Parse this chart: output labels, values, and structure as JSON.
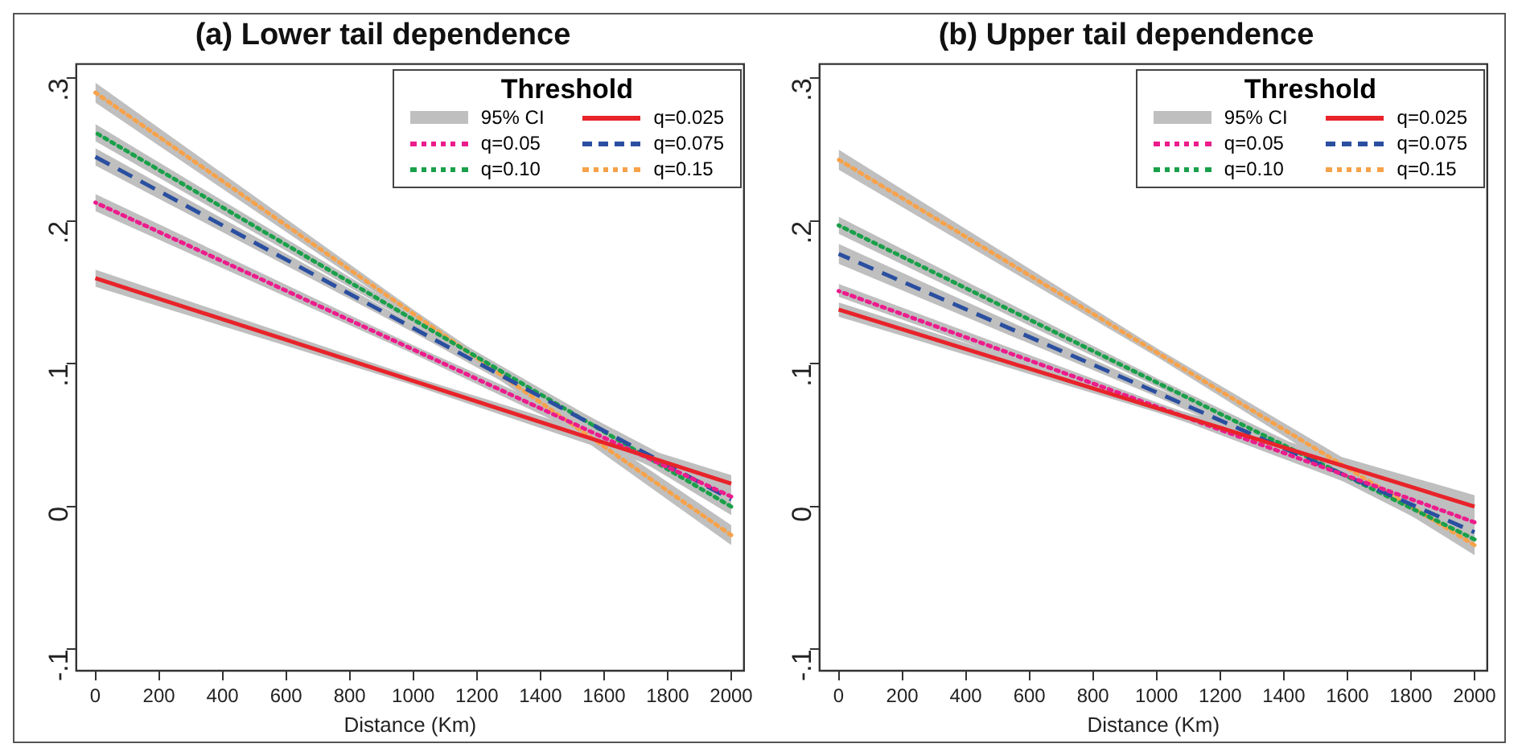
{
  "chart_data": [
    {
      "type": "line",
      "title": "(a) Lower tail dependence",
      "xlabel": "Distance (Km)",
      "legend": "top right",
      "legend_title": "Threshold",
      "marker": "none",
      "grid": false,
      "x": [
        0,
        1000,
        2000
      ],
      "xlim": [
        -60,
        2040
      ],
      "xticks": [
        0,
        200,
        400,
        600,
        800,
        1000,
        1200,
        1400,
        1600,
        1800,
        2000
      ],
      "ylim": [
        -0.115,
        0.31
      ],
      "yticks": [
        {
          "value": -0.1,
          "label": "-.1"
        },
        {
          "value": 0,
          "label": "0"
        },
        {
          "value": 0.1,
          "label": ".1"
        },
        {
          "value": 0.2,
          "label": ".2"
        },
        {
          "value": 0.3,
          "label": ".3"
        }
      ],
      "series": [
        {
          "name": "95% CI",
          "type": "area",
          "color": "#bfbfbf",
          "values": [
            null,
            null,
            null
          ]
        },
        {
          "name": "q=0.025",
          "color": "#e8232a",
          "line_style": "solid",
          "values": [
            0.16,
            0.088,
            0.016
          ],
          "lower": [
            0.154,
            0.085,
            0.01
          ],
          "upper": [
            0.166,
            0.091,
            0.022
          ]
        },
        {
          "name": "q=0.05",
          "color": "#ec1c8c",
          "line_style": "dotted",
          "values": [
            0.213,
            0.11,
            0.007
          ],
          "lower": [
            0.207,
            0.107,
            0.001
          ],
          "upper": [
            0.219,
            0.113,
            0.013
          ]
        },
        {
          "name": "q=0.075",
          "color": "#2a4fa0",
          "line_style": "dashed",
          "values": [
            0.245,
            0.125,
            0.005
          ],
          "lower": [
            0.239,
            0.122,
            -0.001
          ],
          "upper": [
            0.251,
            0.128,
            0.011
          ]
        },
        {
          "name": "q=0.10",
          "color": "#1aa04a",
          "line_style": "dotted",
          "values": [
            0.262,
            0.131,
            0.0
          ],
          "lower": [
            0.256,
            0.128,
            -0.006
          ],
          "upper": [
            0.268,
            0.134,
            0.006
          ]
        },
        {
          "name": "q=0.15",
          "color": "#f7a24a",
          "line_style": "dotted",
          "values": [
            0.29,
            0.135,
            -0.02
          ],
          "lower": [
            0.283,
            0.132,
            -0.027
          ],
          "upper": [
            0.297,
            0.138,
            -0.013
          ]
        }
      ]
    },
    {
      "type": "line",
      "title": "(b) Upper tail dependence",
      "xlabel": "Distance (Km)",
      "legend": "top right",
      "legend_title": "Threshold",
      "marker": "none",
      "grid": false,
      "x": [
        0,
        1000,
        2000
      ],
      "xlim": [
        -60,
        2040
      ],
      "xticks": [
        0,
        200,
        400,
        600,
        800,
        1000,
        1200,
        1400,
        1600,
        1800,
        2000
      ],
      "ylim": [
        -0.115,
        0.31
      ],
      "yticks": [
        {
          "value": -0.1,
          "label": "-.1"
        },
        {
          "value": 0,
          "label": "0"
        },
        {
          "value": 0.1,
          "label": ".1"
        },
        {
          "value": 0.2,
          "label": ".2"
        },
        {
          "value": 0.3,
          "label": ".3"
        }
      ],
      "series": [
        {
          "name": "95% CI",
          "type": "area",
          "color": "#bfbfbf",
          "values": [
            null,
            null,
            null
          ]
        },
        {
          "name": "q=0.025",
          "color": "#e8232a",
          "line_style": "solid",
          "values": [
            0.138,
            0.069,
            0.0
          ],
          "lower": [
            0.133,
            0.066,
            -0.008
          ],
          "upper": [
            0.143,
            0.072,
            0.008
          ]
        },
        {
          "name": "q=0.05",
          "color": "#ec1c8c",
          "line_style": "dotted",
          "values": [
            0.151,
            0.07,
            -0.011
          ],
          "lower": [
            0.147,
            0.067,
            -0.017
          ],
          "upper": [
            0.156,
            0.073,
            -0.005
          ]
        },
        {
          "name": "q=0.075",
          "color": "#2a4fa0",
          "line_style": "dashed",
          "values": [
            0.177,
            0.08,
            -0.018
          ],
          "lower": [
            0.17,
            0.077,
            -0.024
          ],
          "upper": [
            0.184,
            0.083,
            -0.012
          ]
        },
        {
          "name": "q=0.10",
          "color": "#1aa04a",
          "line_style": "dotted",
          "values": [
            0.197,
            0.087,
            -0.023
          ],
          "lower": [
            0.191,
            0.084,
            -0.029
          ],
          "upper": [
            0.203,
            0.09,
            -0.017
          ]
        },
        {
          "name": "q=0.15",
          "color": "#f7a24a",
          "line_style": "dotted",
          "values": [
            0.243,
            0.108,
            -0.027
          ],
          "lower": [
            0.236,
            0.105,
            -0.034
          ],
          "upper": [
            0.25,
            0.111,
            -0.02
          ]
        }
      ]
    }
  ]
}
